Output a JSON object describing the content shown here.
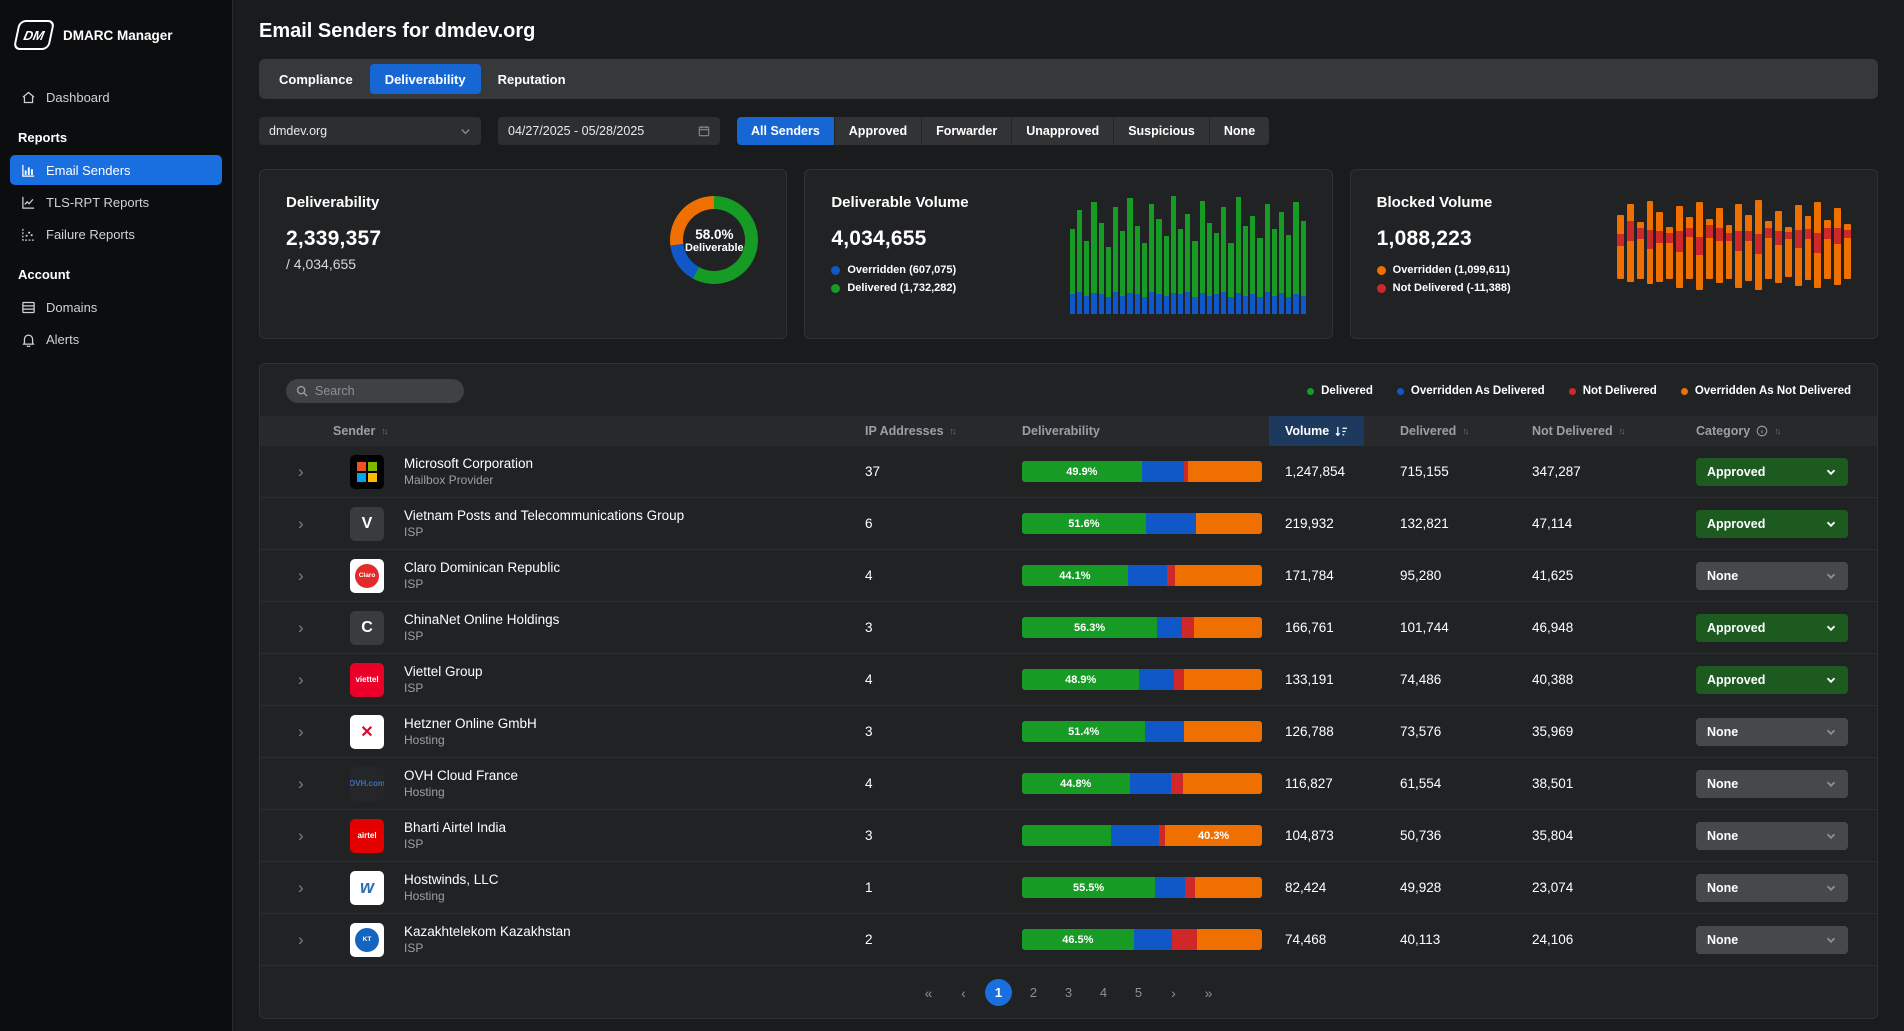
{
  "colors": {
    "accent_blue": "#1a6fe0",
    "green": "#169b25",
    "blue": "#1058c8",
    "red": "#d02828",
    "orange": "#ef7000"
  },
  "app": {
    "logo": "DM",
    "name": "DMARC Manager"
  },
  "sidebar": {
    "sections": [
      {
        "items": [
          {
            "label": "Dashboard",
            "icon": "home-icon",
            "active": false
          }
        ]
      },
      {
        "header": "Reports",
        "items": [
          {
            "label": "Email Senders",
            "icon": "bar-chart-icon",
            "active": true
          },
          {
            "label": "TLS-RPT Reports",
            "icon": "line-chart-icon",
            "active": false
          },
          {
            "label": "Failure Reports",
            "icon": "scatter-chart-icon",
            "active": false
          }
        ]
      },
      {
        "header": "Account",
        "items": [
          {
            "label": "Domains",
            "icon": "rows-icon",
            "active": false
          },
          {
            "label": "Alerts",
            "icon": "bell-icon",
            "active": false
          }
        ]
      }
    ]
  },
  "header": {
    "title": "Email Senders for dmdev.org"
  },
  "tabs": [
    {
      "label": "Compliance",
      "active": false
    },
    {
      "label": "Deliverability",
      "active": true
    },
    {
      "label": "Reputation",
      "active": false
    }
  ],
  "filters": {
    "domain": "dmdev.org",
    "date_range": "04/27/2025 - 05/28/2025",
    "senders": [
      {
        "label": "All Senders",
        "active": true
      },
      {
        "label": "Approved",
        "active": false
      },
      {
        "label": "Forwarder",
        "active": false
      },
      {
        "label": "Unapproved",
        "active": false
      },
      {
        "label": "Suspicious",
        "active": false
      },
      {
        "label": "None",
        "active": false
      }
    ]
  },
  "cards": {
    "deliverability": {
      "title": "Deliverability",
      "value": "2,339,357",
      "denominator": "/ 4,034,655",
      "donut": {
        "percent_label": "58.0%",
        "sub_label": "Deliverable",
        "segments": [
          {
            "name": "deliverable",
            "color_key": "green",
            "pct": 58
          },
          {
            "name": "overridden-as-delivered",
            "color_key": "blue",
            "pct": 15
          },
          {
            "name": "blocked",
            "color_key": "orange",
            "pct": 27
          }
        ]
      }
    },
    "deliverable_volume": {
      "title": "Deliverable Volume",
      "value": "4,034,655",
      "legend": [
        {
          "label": "Overridden (607,075)",
          "color_key": "blue"
        },
        {
          "label": "Delivered (1,732,282)",
          "color_key": "green"
        }
      ],
      "bars": [
        [
          70,
          16
        ],
        [
          85,
          18
        ],
        [
          60,
          15
        ],
        [
          92,
          17
        ],
        [
          75,
          16
        ],
        [
          55,
          14
        ],
        [
          88,
          18
        ],
        [
          68,
          15
        ],
        [
          95,
          17
        ],
        [
          72,
          16
        ],
        [
          58,
          14
        ],
        [
          90,
          18
        ],
        [
          78,
          16
        ],
        [
          64,
          15
        ],
        [
          97,
          17
        ],
        [
          70,
          16
        ],
        [
          82,
          18
        ],
        [
          60,
          14
        ],
        [
          93,
          17
        ],
        [
          75,
          15
        ],
        [
          66,
          16
        ],
        [
          88,
          18
        ],
        [
          58,
          14
        ],
        [
          96,
          17
        ],
        [
          72,
          15
        ],
        [
          80,
          16
        ],
        [
          62,
          14
        ],
        [
          90,
          18
        ],
        [
          70,
          15
        ],
        [
          84,
          17
        ],
        [
          65,
          14
        ],
        [
          92,
          16
        ],
        [
          76,
          15
        ]
      ]
    },
    "blocked_volume": {
      "title": "Blocked Volume",
      "value": "1,088,223",
      "legend": [
        {
          "label": "Overridden (1,099,611)",
          "color_key": "orange"
        },
        {
          "label": "Not Delivered (-11,388)",
          "color_key": "red"
        }
      ],
      "bars": [
        [
          18,
          62,
          30,
          18
        ],
        [
          8,
          75,
          22,
          25
        ],
        [
          25,
          55,
          10,
          20
        ],
        [
          5,
          80,
          35,
          22
        ],
        [
          15,
          68,
          28,
          16
        ],
        [
          30,
          50,
          12,
          18
        ],
        [
          10,
          78,
          30,
          26
        ],
        [
          20,
          60,
          18,
          15
        ],
        [
          6,
          84,
          40,
          20
        ],
        [
          22,
          58,
          10,
          22
        ],
        [
          12,
          72,
          26,
          18
        ],
        [
          28,
          52,
          15,
          14
        ],
        [
          8,
          80,
          32,
          24
        ],
        [
          18,
          64,
          24,
          16
        ],
        [
          4,
          86,
          38,
          22
        ],
        [
          24,
          56,
          12,
          18
        ],
        [
          14,
          70,
          28,
          20
        ],
        [
          30,
          48,
          10,
          14
        ],
        [
          9,
          78,
          30,
          22
        ],
        [
          19,
          62,
          20,
          16
        ],
        [
          6,
          82,
          36,
          24
        ],
        [
          23,
          57,
          14,
          18
        ],
        [
          12,
          74,
          26,
          20
        ],
        [
          27,
          53,
          10,
          15
        ]
      ]
    }
  },
  "chart_data": [
    {
      "type": "pie",
      "title": "Deliverability",
      "labels": [
        "Deliverable",
        "Overridden As Delivered",
        "Blocked"
      ],
      "values": [
        58,
        15,
        27
      ],
      "center_label": "58.0% Deliverable"
    },
    {
      "type": "bar",
      "title": "Deliverable Volume",
      "total": 4034655,
      "series": [
        {
          "name": "Overridden",
          "value": 607075
        },
        {
          "name": "Delivered",
          "value": 1732282
        }
      ],
      "note": "stacked daily mini-bars, axes unlabeled"
    },
    {
      "type": "bar",
      "title": "Blocked Volume",
      "total": 1088223,
      "series": [
        {
          "name": "Overridden",
          "value": 1099611
        },
        {
          "name": "Not Delivered",
          "value": -11388
        }
      ],
      "note": "daily mini-bars, axes unlabeled"
    }
  ],
  "table": {
    "search_placeholder": "Search",
    "legend": [
      {
        "label": "Delivered",
        "color_key": "green"
      },
      {
        "label": "Overridden As Delivered",
        "color_key": "blue"
      },
      {
        "label": "Not Delivered",
        "color_key": "red"
      },
      {
        "label": "Overridden As Not Delivered",
        "color_key": "orange"
      }
    ],
    "columns": {
      "sender": "Sender",
      "ip": "IP Addresses",
      "deliverability": "Deliverability",
      "volume": "Volume",
      "delivered": "Delivered",
      "not_delivered": "Not Delivered",
      "category": "Category"
    },
    "rows": [
      {
        "name": "Microsoft Corporation",
        "type": "Mailbox Provider",
        "logo": {
          "kind": "microsoft"
        },
        "ip": "37",
        "bar": {
          "green": 49.9,
          "blue": 17.5,
          "red": 1.6,
          "orange": 31.0,
          "label": "49.9%",
          "label_on": "green"
        },
        "volume": "1,247,854",
        "delivered": "715,155",
        "not_delivered": "347,287",
        "category": "Approved"
      },
      {
        "name": "Vietnam Posts and Telecommunications Group",
        "type": "ISP",
        "logo": {
          "kind": "letter",
          "text": "V",
          "bg": "#3a3b3e",
          "fg": "#ffffff"
        },
        "ip": "6",
        "bar": {
          "green": 51.6,
          "blue": 20.9,
          "red": 0,
          "orange": 27.5,
          "label": "51.6%",
          "label_on": "green"
        },
        "volume": "219,932",
        "delivered": "132,821",
        "not_delivered": "47,114",
        "category": "Approved"
      },
      {
        "name": "Claro Dominican Republic",
        "type": "ISP",
        "logo": {
          "kind": "circle-badge",
          "bg": "#ffffff",
          "circle": "#e32b2b",
          "text": "Claro",
          "fg": "#ffffff"
        },
        "ip": "4",
        "bar": {
          "green": 44.1,
          "blue": 16.5,
          "red": 3.0,
          "orange": 36.4,
          "label": "44.1%",
          "label_on": "green"
        },
        "volume": "171,784",
        "delivered": "95,280",
        "not_delivered": "41,625",
        "category": "None"
      },
      {
        "name": "ChinaNet Online Holdings",
        "type": "ISP",
        "logo": {
          "kind": "letter",
          "text": "C",
          "bg": "#3a3b3e",
          "fg": "#ffffff"
        },
        "ip": "3",
        "bar": {
          "green": 56.3,
          "blue": 10.5,
          "red": 5.0,
          "orange": 28.2,
          "label": "56.3%",
          "label_on": "green"
        },
        "volume": "166,761",
        "delivered": "101,744",
        "not_delivered": "46,948",
        "category": "Approved"
      },
      {
        "name": "Viettel Group",
        "type": "ISP",
        "logo": {
          "kind": "letter-small",
          "text": "viettel",
          "bg": "#ea0029",
          "fg": "#ffffff"
        },
        "ip": "4",
        "bar": {
          "green": 48.9,
          "blue": 14.5,
          "red": 4.0,
          "orange": 32.6,
          "label": "48.9%",
          "label_on": "green"
        },
        "volume": "133,191",
        "delivered": "74,486",
        "not_delivered": "40,388",
        "category": "Approved"
      },
      {
        "name": "Hetzner Online GmbH",
        "type": "Hosting",
        "logo": {
          "kind": "letter",
          "text": "✕",
          "bg": "#ffffff",
          "fg": "#d50c2d"
        },
        "ip": "3",
        "bar": {
          "green": 51.4,
          "blue": 15.9,
          "red": 0,
          "orange": 32.7,
          "label": "51.4%",
          "label_on": "green"
        },
        "volume": "126,788",
        "delivered": "73,576",
        "not_delivered": "35,969",
        "category": "None"
      },
      {
        "name": "OVH Cloud France",
        "type": "Hosting",
        "logo": {
          "kind": "letter-small",
          "text": "OVH.com",
          "bg": "#24262a",
          "fg": "#3b6fb7"
        },
        "ip": "4",
        "bar": {
          "green": 44.8,
          "blue": 17.2,
          "red": 5.0,
          "orange": 33.0,
          "label": "44.8%",
          "label_on": "green"
        },
        "volume": "116,827",
        "delivered": "61,554",
        "not_delivered": "38,501",
        "category": "None"
      },
      {
        "name": "Bharti Airtel India",
        "type": "ISP",
        "logo": {
          "kind": "letter-small",
          "text": "airtel",
          "bg": "#e40000",
          "fg": "#ffffff"
        },
        "ip": "3",
        "bar": {
          "green": 37.0,
          "blue": 20.0,
          "red": 2.7,
          "orange": 40.3,
          "label": "40.3%",
          "label_on": "orange"
        },
        "volume": "104,873",
        "delivered": "50,736",
        "not_delivered": "35,804",
        "category": "None"
      },
      {
        "name": "Hostwinds, LLC",
        "type": "Hosting",
        "logo": {
          "kind": "letter-ital",
          "text": "w",
          "bg": "#ffffff",
          "fg": "#2e6cb5"
        },
        "ip": "1",
        "bar": {
          "green": 55.5,
          "blue": 12.5,
          "red": 4.0,
          "orange": 28.0,
          "label": "55.5%",
          "label_on": "green"
        },
        "volume": "82,424",
        "delivered": "49,928",
        "not_delivered": "23,074",
        "category": "None"
      },
      {
        "name": "Kazakhtelekom Kazakhstan",
        "type": "ISP",
        "logo": {
          "kind": "circle-badge",
          "bg": "#ffffff",
          "circle": "#1565c0",
          "text": "KT",
          "fg": "#ffffff"
        },
        "ip": "2",
        "bar": {
          "green": 46.5,
          "blue": 16.0,
          "red": 10.5,
          "orange": 27.0,
          "label": "46.5%",
          "label_on": "green"
        },
        "volume": "74,468",
        "delivered": "40,113",
        "not_delivered": "24,106",
        "category": "None"
      }
    ],
    "pagination": {
      "first": "«",
      "prev": "‹",
      "next": "›",
      "last": "»",
      "pages": [
        "1",
        "2",
        "3",
        "4",
        "5"
      ],
      "active": "1"
    }
  }
}
